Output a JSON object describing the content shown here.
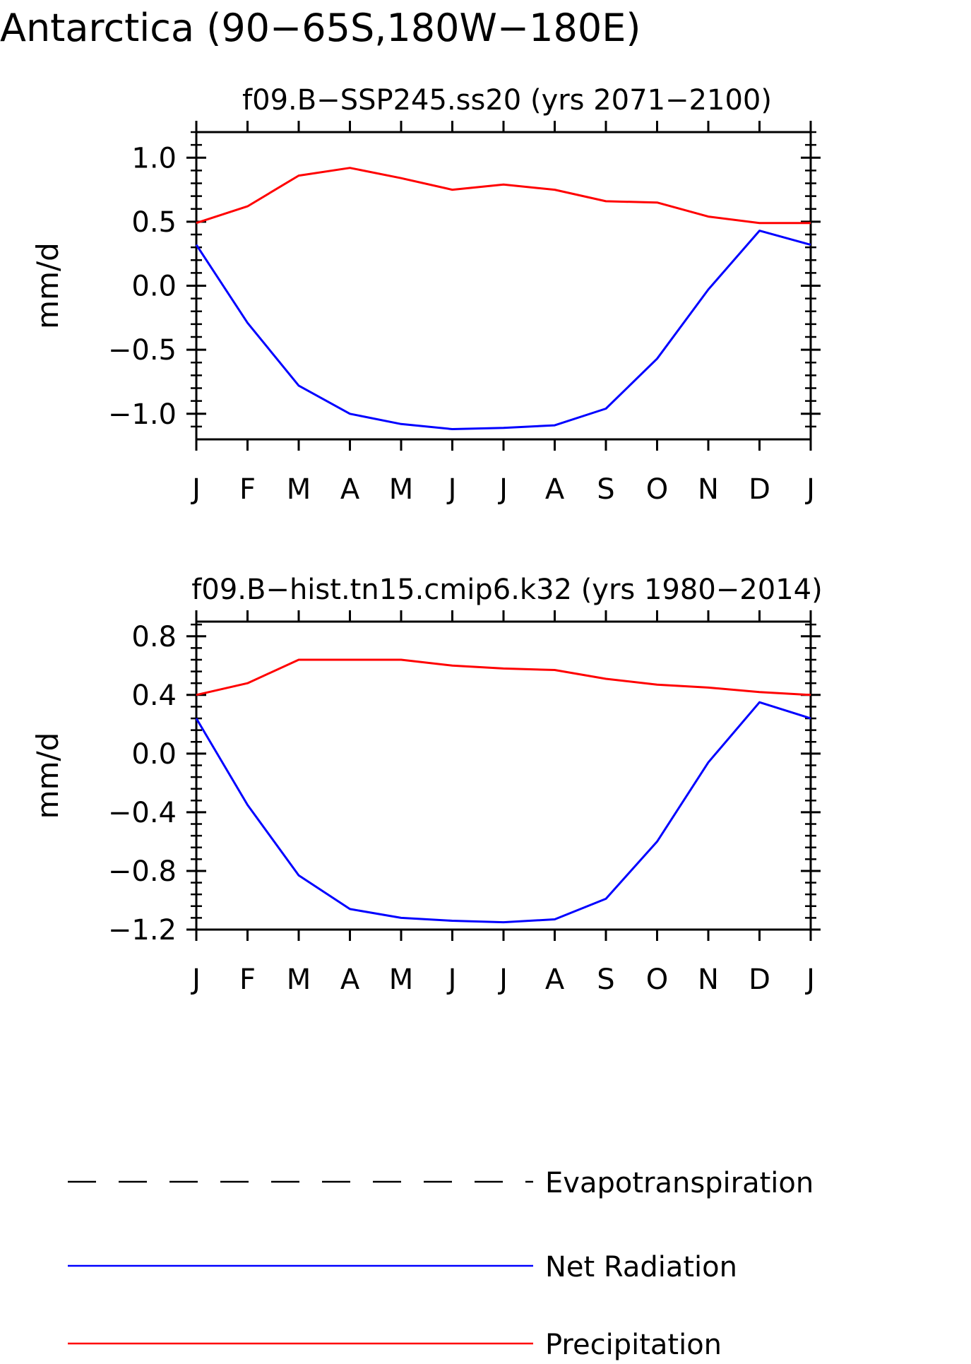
{
  "figure": {
    "title": "Antarctica (90-65S,180W-180E)"
  },
  "colors": {
    "net_radiation": "#0000ff",
    "precipitation": "#ff0000",
    "evapotranspiration": "#000000",
    "axes": "#000000"
  },
  "legend": {
    "placement": "bottom",
    "items": [
      {
        "name": "Evapotranspiration",
        "style": "dashed",
        "color": "#000000"
      },
      {
        "name": "Net Radiation",
        "style": "solid",
        "color": "#0000ff"
      },
      {
        "name": "Precipitation",
        "style": "solid",
        "color": "#ff0000"
      }
    ]
  },
  "chart_data": [
    {
      "type": "line",
      "title": "f09.B-SSP245.ss20 (yrs 2071-2100)",
      "xlabel": "",
      "ylabel": "mm/d",
      "categories": [
        "J",
        "F",
        "M",
        "A",
        "M",
        "J",
        "J",
        "A",
        "S",
        "O",
        "N",
        "D",
        "J"
      ],
      "ylim": [
        -1.2,
        1.2
      ],
      "yticks": [
        -1.0,
        -0.5,
        0.0,
        0.5,
        1.0
      ],
      "ytick_labels": [
        "-1.0",
        "-0.5",
        "0.0",
        "0.5",
        "1.0"
      ],
      "grid": false,
      "series": [
        {
          "name": "Net Radiation",
          "color": "#0000ff",
          "values": [
            0.32,
            -0.29,
            -0.78,
            -1.0,
            -1.08,
            -1.12,
            -1.11,
            -1.09,
            -0.96,
            -0.57,
            -0.03,
            0.43,
            0.32
          ]
        },
        {
          "name": "Precipitation",
          "color": "#ff0000",
          "values": [
            0.49,
            0.62,
            0.86,
            0.92,
            0.84,
            0.75,
            0.79,
            0.75,
            0.66,
            0.65,
            0.54,
            0.49,
            0.49
          ]
        }
      ]
    },
    {
      "type": "line",
      "title": "f09.B-hist.tn15.cmip6.k32 (yrs 1980-2014)",
      "xlabel": "",
      "ylabel": "mm/d",
      "categories": [
        "J",
        "F",
        "M",
        "A",
        "M",
        "J",
        "J",
        "A",
        "S",
        "O",
        "N",
        "D",
        "J"
      ],
      "ylim": [
        -1.2,
        0.9
      ],
      "yticks": [
        -1.2,
        -0.8,
        -0.4,
        0.0,
        0.4,
        0.8
      ],
      "ytick_labels": [
        "-1.2",
        "-0.8",
        "-0.4",
        "0.0",
        "0.4",
        "0.8"
      ],
      "grid": false,
      "series": [
        {
          "name": "Net Radiation",
          "color": "#0000ff",
          "values": [
            0.24,
            -0.35,
            -0.83,
            -1.06,
            -1.12,
            -1.14,
            -1.15,
            -1.13,
            -0.99,
            -0.6,
            -0.06,
            0.35,
            0.24
          ]
        },
        {
          "name": "Precipitation",
          "color": "#ff0000",
          "values": [
            0.4,
            0.48,
            0.64,
            0.64,
            0.64,
            0.6,
            0.58,
            0.57,
            0.51,
            0.47,
            0.45,
            0.42,
            0.4
          ]
        }
      ]
    }
  ]
}
